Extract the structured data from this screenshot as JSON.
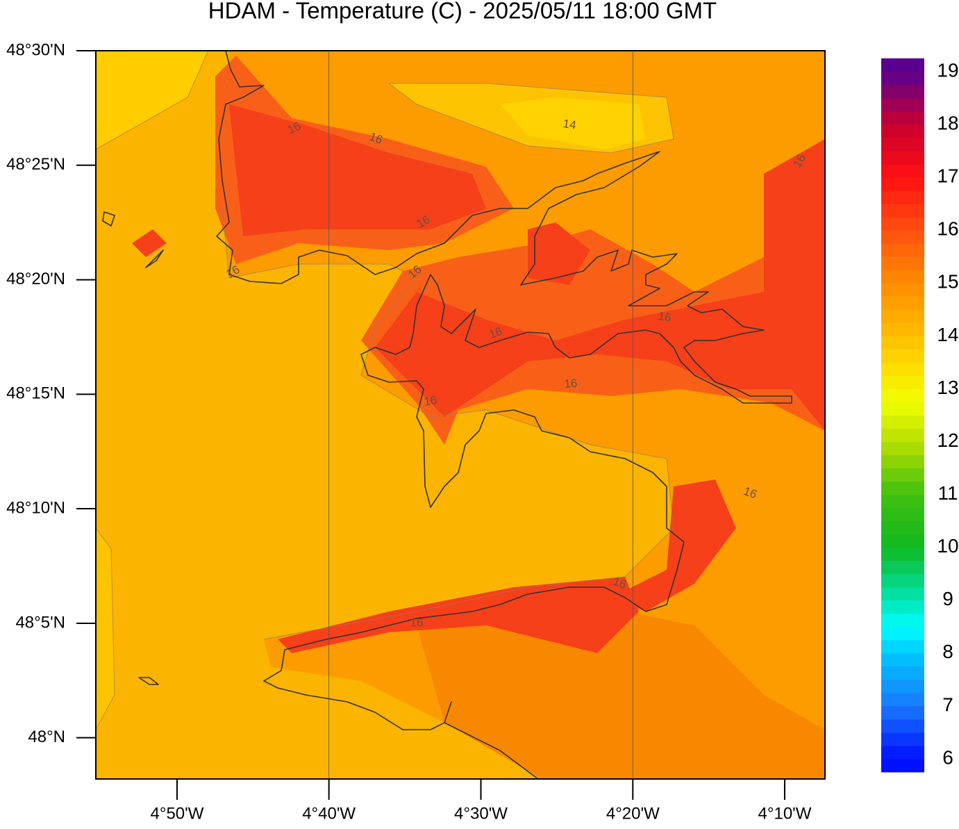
{
  "chart_data": {
    "type": "map",
    "title": "HDAM - Temperature (C)  -  2025/05/11  18:00 GMT",
    "xlim": [
      -4.9224,
      -4.1225
    ],
    "ylim": [
      47.97,
      48.5
    ],
    "xticks": [
      {
        "value": -4.8333,
        "label": "4°50'W"
      },
      {
        "value": -4.6667,
        "label": "4°40'W"
      },
      {
        "value": -4.5,
        "label": "4°30'W"
      },
      {
        "value": -4.3333,
        "label": "4°20'W"
      },
      {
        "value": -4.1667,
        "label": "4°10'W"
      }
    ],
    "yticks": [
      {
        "value": 48.5,
        "label": "48°30'N"
      },
      {
        "value": 48.4167,
        "label": "48°25'N"
      },
      {
        "value": 48.3333,
        "label": "48°20'N"
      },
      {
        "value": 48.25,
        "label": "48°15'N"
      },
      {
        "value": 48.1667,
        "label": "48°10'N"
      },
      {
        "value": 48.0833,
        "label": "48°5'N"
      },
      {
        "value": 48.0,
        "label": "48°N"
      }
    ],
    "grid_x": [
      -4.6667,
      -4.3333
    ],
    "colorbar": {
      "lim": [
        5.75,
        19.25
      ],
      "step": 0.25,
      "ticks": [
        6,
        7,
        8,
        9,
        10,
        11,
        12,
        13,
        14,
        15,
        16,
        17,
        18,
        19
      ],
      "stops": [
        [
          6,
          "#0010ff"
        ],
        [
          7,
          "#1a78ff"
        ],
        [
          8,
          "#00c8ff"
        ],
        [
          8.5,
          "#00ffff"
        ],
        [
          9,
          "#00e6b4"
        ],
        [
          10,
          "#10b820"
        ],
        [
          11,
          "#40c010"
        ],
        [
          12,
          "#b8e000"
        ],
        [
          12.75,
          "#f0ff00"
        ],
        [
          13.5,
          "#ffd800"
        ],
        [
          14,
          "#ffbe00"
        ],
        [
          15,
          "#ff8c00"
        ],
        [
          16,
          "#ff5010"
        ],
        [
          17,
          "#ff1010"
        ],
        [
          18,
          "#c80030"
        ],
        [
          19,
          "#5a0090"
        ]
      ]
    },
    "contour_labels": [
      "16",
      "16",
      "16",
      "16",
      "16",
      "16",
      "16",
      "16",
      "16",
      "16",
      "16",
      "16",
      "16",
      "14"
    ]
  }
}
